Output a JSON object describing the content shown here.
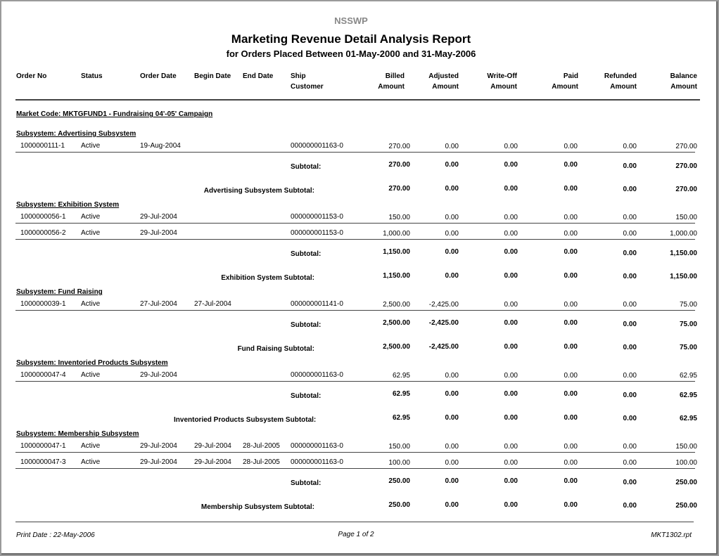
{
  "header": {
    "org": "NSSWP",
    "title": "Marketing Revenue Detail Analysis Report",
    "subtitle": "for Orders Placed Between 01-May-2000 and 31-May-2006"
  },
  "columns": [
    [
      "Order No"
    ],
    [
      "Status"
    ],
    [
      "Order Date"
    ],
    [
      "Begin Date"
    ],
    [
      "End Date"
    ],
    [
      "Ship",
      "Customer"
    ],
    [
      "Billed",
      "Amount"
    ],
    [
      "Adjusted",
      "Amount"
    ],
    [
      "Write-Off",
      "Amount"
    ],
    [
      "Paid",
      "Amount"
    ],
    [
      "Refunded",
      "Amount"
    ],
    [
      "Balance",
      "Amount"
    ]
  ],
  "market_code": "Market Code:   MKTGFUND1 - Fundraising 04'-05' Campaign",
  "subsystems": [
    {
      "heading": "Subsystem:   Advertising Subsystem",
      "rows": [
        {
          "order_no": "1000000111-1",
          "status": "Active",
          "order_date": "19-Aug-2004",
          "customer": "000000001163-0",
          "amounts": [
            "270.00",
            "0.00",
            "0.00",
            "0.00",
            "0.00",
            "270.00"
          ]
        }
      ],
      "subtotal_label": "Subtotal:",
      "subtotal": [
        "270.00",
        "0.00",
        "0.00",
        "0.00",
        "0.00",
        "270.00"
      ],
      "total_label": "Advertising Subsystem Subtotal:",
      "total": [
        "270.00",
        "0.00",
        "0.00",
        "0.00",
        "0.00",
        "270.00"
      ]
    },
    {
      "heading": "Subsystem:   Exhibition System",
      "rows": [
        {
          "order_no": "1000000056-1",
          "status": "Active",
          "order_date": "29-Jul-2004",
          "customer": "000000001153-0",
          "amounts": [
            "150.00",
            "0.00",
            "0.00",
            "0.00",
            "0.00",
            "150.00"
          ]
        },
        {
          "order_no": "1000000056-2",
          "status": "Active",
          "order_date": "29-Jul-2004",
          "customer": "000000001153-0",
          "amounts": [
            "1,000.00",
            "0.00",
            "0.00",
            "0.00",
            "0.00",
            "1,000.00"
          ]
        }
      ],
      "subtotal_label": "Subtotal:",
      "subtotal": [
        "1,150.00",
        "0.00",
        "0.00",
        "0.00",
        "0.00",
        "1,150.00"
      ],
      "total_label": "Exhibition System Subtotal:",
      "total": [
        "1,150.00",
        "0.00",
        "0.00",
        "0.00",
        "0.00",
        "1,150.00"
      ]
    },
    {
      "heading": "Subsystem:   Fund Raising",
      "rows": [
        {
          "order_no": "1000000039-1",
          "status": "Active",
          "order_date": "27-Jul-2004",
          "begin_date": "27-Jul-2004",
          "customer": "000000001141-0",
          "amounts": [
            "2,500.00",
            "-2,425.00",
            "0.00",
            "0.00",
            "0.00",
            "75.00"
          ]
        }
      ],
      "subtotal_label": "Subtotal:",
      "subtotal": [
        "2,500.00",
        "-2,425.00",
        "0.00",
        "0.00",
        "0.00",
        "75.00"
      ],
      "total_label": "Fund Raising Subtotal:",
      "total": [
        "2,500.00",
        "-2,425.00",
        "0.00",
        "0.00",
        "0.00",
        "75.00"
      ]
    },
    {
      "heading": "Subsystem:   Inventoried Products Subsystem",
      "rows": [
        {
          "order_no": "1000000047-4",
          "status": "Active",
          "order_date": "29-Jul-2004",
          "customer": "000000001163-0",
          "amounts": [
            "62.95",
            "0.00",
            "0.00",
            "0.00",
            "0.00",
            "62.95"
          ]
        }
      ],
      "subtotal_label": "Subtotal:",
      "subtotal": [
        "62.95",
        "0.00",
        "0.00",
        "0.00",
        "0.00",
        "62.95"
      ],
      "total_label": "Inventoried Products Subsystem Subtotal:",
      "total": [
        "62.95",
        "0.00",
        "0.00",
        "0.00",
        "0.00",
        "62.95"
      ]
    },
    {
      "heading": "Subsystem:   Membership Subsystem",
      "rows": [
        {
          "order_no": "1000000047-1",
          "status": "Active",
          "order_date": "29-Jul-2004",
          "begin_date": "29-Jul-2004",
          "end_date": "28-Jul-2005",
          "customer": "000000001163-0",
          "amounts": [
            "150.00",
            "0.00",
            "0.00",
            "0.00",
            "0.00",
            "150.00"
          ]
        },
        {
          "order_no": "1000000047-3",
          "status": "Active",
          "order_date": "29-Jul-2004",
          "begin_date": "29-Jul-2004",
          "end_date": "28-Jul-2005",
          "customer": "000000001163-0",
          "amounts": [
            "100.00",
            "0.00",
            "0.00",
            "0.00",
            "0.00",
            "100.00"
          ]
        }
      ],
      "subtotal_label": "Subtotal:",
      "subtotal": [
        "250.00",
        "0.00",
        "0.00",
        "0.00",
        "0.00",
        "250.00"
      ],
      "total_label": "Membership Subsystem Subtotal:",
      "total": [
        "250.00",
        "0.00",
        "0.00",
        "0.00",
        "0.00",
        "250.00"
      ]
    }
  ],
  "footer": {
    "print_date": "Print Date : 22-May-2006",
    "page": "Page 1 of 2",
    "file": "MKT1302.rpt"
  }
}
